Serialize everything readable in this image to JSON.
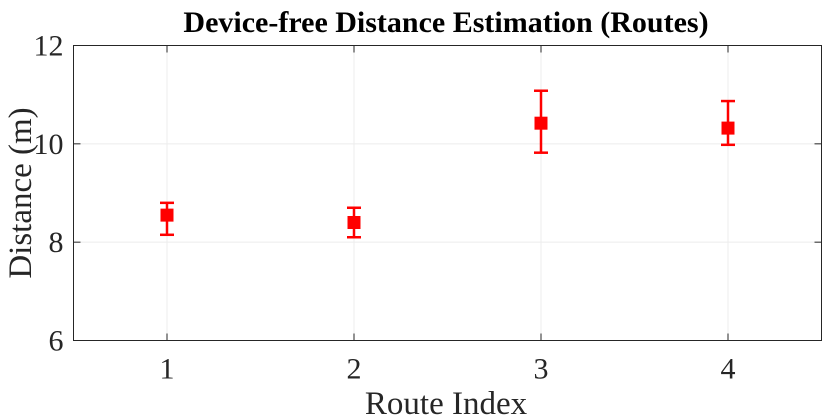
{
  "chart_data": {
    "type": "scatter",
    "title": "Device-free Distance Estimation (Routes)",
    "xlabel": "Route Index",
    "ylabel": "Distance (m)",
    "x_ticks": [
      "1",
      "2",
      "3",
      "4"
    ],
    "y_ticks": [
      "6",
      "8",
      "10",
      "12"
    ],
    "xlim": [
      0.5,
      4.5
    ],
    "ylim": [
      6,
      12
    ],
    "grid": true,
    "series": [
      {
        "marker": "square",
        "color": "#ff0000",
        "points": [
          {
            "x": 1,
            "y": 8.55,
            "err_low": 8.15,
            "err_high": 8.8
          },
          {
            "x": 2,
            "y": 8.4,
            "err_low": 8.1,
            "err_high": 8.7
          },
          {
            "x": 3,
            "y": 10.42,
            "err_low": 9.82,
            "err_high": 11.08
          },
          {
            "x": 4,
            "y": 10.32,
            "err_low": 9.98,
            "err_high": 10.87
          }
        ]
      }
    ]
  }
}
